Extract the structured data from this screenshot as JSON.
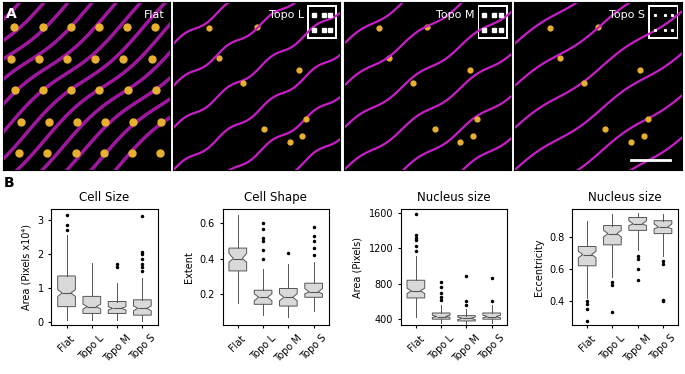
{
  "figure": {
    "panel_a": {
      "label": "A",
      "images": [
        "Flat",
        "Topo L",
        "Topo M",
        "Topo S"
      ]
    },
    "panel_b": {
      "label": "B"
    }
  },
  "chart_data": [
    {
      "type": "box",
      "title": "Cell Size",
      "y_label": "Area (Pixels x10⁴)",
      "categories": [
        "Flat",
        "Topo L",
        "Topo M",
        "Topo S"
      ],
      "ylim": [
        -0.1,
        3.3
      ],
      "yticks": [
        0,
        1,
        2,
        3
      ],
      "color": "#d9d9d9",
      "boxes": [
        {
          "min": 0.05,
          "q1": 0.45,
          "median": 0.85,
          "q3": 1.35,
          "max": 2.55,
          "notch_low": 0.75,
          "notch_high": 0.95,
          "outliers": [
            2.7,
            2.85,
            3.15
          ]
        },
        {
          "min": 0.05,
          "q1": 0.25,
          "median": 0.45,
          "q3": 0.75,
          "max": 1.72,
          "notch_low": 0.38,
          "notch_high": 0.52,
          "outliers": []
        },
        {
          "min": 0.05,
          "q1": 0.25,
          "median": 0.4,
          "q3": 0.6,
          "max": 1.15,
          "notch_low": 0.35,
          "notch_high": 0.45,
          "outliers": [
            1.6,
            1.7
          ]
        },
        {
          "min": 0.02,
          "q1": 0.2,
          "median": 0.4,
          "q3": 0.65,
          "max": 1.3,
          "notch_low": 0.33,
          "notch_high": 0.47,
          "outliers": [
            1.5,
            1.6,
            1.7,
            1.85,
            2.0,
            2.05,
            3.1
          ]
        }
      ]
    },
    {
      "type": "box",
      "title": "Cell Shape",
      "y_label": "Extent",
      "categories": [
        "Flat",
        "Topo L",
        "Topo M",
        "Topo S"
      ],
      "ylim": [
        0.02,
        0.68
      ],
      "yticks": [
        0.2,
        0.4,
        0.6
      ],
      "color": "#d9d9d9",
      "boxes": [
        {
          "min": 0.15,
          "q1": 0.33,
          "median": 0.4,
          "q3": 0.46,
          "max": 0.65,
          "notch_low": 0.38,
          "notch_high": 0.43,
          "outliers": []
        },
        {
          "min": 0.08,
          "q1": 0.14,
          "median": 0.18,
          "q3": 0.22,
          "max": 0.34,
          "notch_low": 0.16,
          "notch_high": 0.2,
          "outliers": [
            0.4,
            0.45,
            0.5,
            0.52,
            0.57,
            0.6
          ]
        },
        {
          "min": 0.07,
          "q1": 0.13,
          "median": 0.18,
          "q3": 0.23,
          "max": 0.37,
          "notch_low": 0.16,
          "notch_high": 0.2,
          "outliers": [
            0.43
          ]
        },
        {
          "min": 0.1,
          "q1": 0.18,
          "median": 0.21,
          "q3": 0.26,
          "max": 0.38,
          "notch_low": 0.2,
          "notch_high": 0.23,
          "outliers": [
            0.42,
            0.46,
            0.5,
            0.53,
            0.58
          ]
        }
      ]
    },
    {
      "type": "box",
      "title": "Nucleus size",
      "y_label": "Area (Pixels)",
      "categories": [
        "Flat",
        "Topo L",
        "Topo M",
        "Topo S"
      ],
      "ylim": [
        330,
        1640
      ],
      "yticks": [
        400,
        800,
        1200,
        1600
      ],
      "color": "#d9d9d9",
      "boxes": [
        {
          "min": 420,
          "q1": 640,
          "median": 720,
          "q3": 840,
          "max": 1110,
          "notch_low": 690,
          "notch_high": 750,
          "outliers": [
            1170,
            1230,
            1290,
            1320,
            1350,
            1590
          ]
        },
        {
          "min": 360,
          "q1": 400,
          "median": 430,
          "q3": 470,
          "max": 560,
          "notch_low": 420,
          "notch_high": 445,
          "outliers": [
            620,
            650,
            700,
            760,
            820
          ]
        },
        {
          "min": 340,
          "q1": 380,
          "median": 410,
          "q3": 440,
          "max": 520,
          "notch_low": 395,
          "notch_high": 425,
          "outliers": [
            560,
            600,
            890
          ]
        },
        {
          "min": 360,
          "q1": 400,
          "median": 430,
          "q3": 470,
          "max": 560,
          "notch_low": 415,
          "notch_high": 445,
          "outliers": [
            600,
            870
          ]
        }
      ]
    },
    {
      "type": "box",
      "title": "Nucleus size",
      "y_label": "Eccentricity",
      "categories": [
        "Flat",
        "Topo L",
        "Topo M",
        "Topo S"
      ],
      "ylim": [
        0.25,
        0.97
      ],
      "yticks": [
        0.4,
        0.6,
        0.8
      ],
      "color": "#d9d9d9",
      "boxes": [
        {
          "min": 0.42,
          "q1": 0.62,
          "median": 0.69,
          "q3": 0.74,
          "max": 0.9,
          "notch_low": 0.67,
          "notch_high": 0.71,
          "outliers": [
            0.28,
            0.35,
            0.38,
            0.4
          ]
        },
        {
          "min": 0.55,
          "q1": 0.75,
          "median": 0.82,
          "q3": 0.87,
          "max": 0.94,
          "notch_low": 0.8,
          "notch_high": 0.84,
          "outliers": [
            0.33,
            0.5,
            0.52
          ]
        },
        {
          "min": 0.72,
          "q1": 0.84,
          "median": 0.88,
          "q3": 0.92,
          "max": 0.95,
          "notch_low": 0.87,
          "notch_high": 0.9,
          "outliers": [
            0.53,
            0.6,
            0.66,
            0.68
          ]
        },
        {
          "min": 0.68,
          "q1": 0.82,
          "median": 0.86,
          "q3": 0.9,
          "max": 0.94,
          "notch_low": 0.85,
          "notch_high": 0.88,
          "outliers": [
            0.4,
            0.41,
            0.63,
            0.65
          ]
        }
      ]
    }
  ]
}
